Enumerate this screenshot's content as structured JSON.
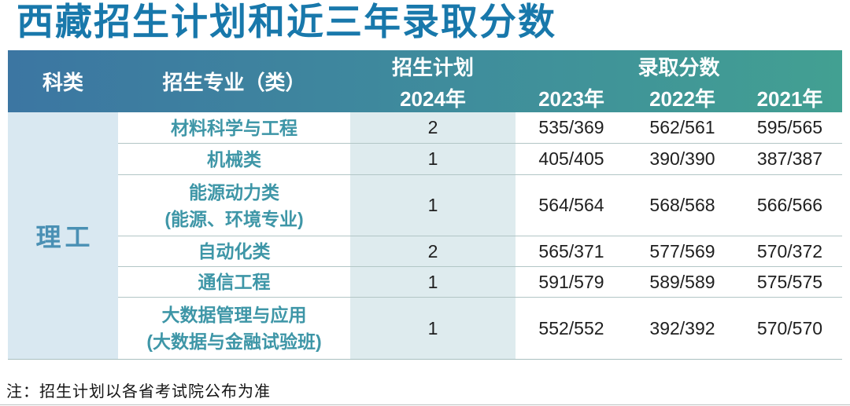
{
  "chart_data": {
    "type": "table",
    "title": "西藏招生计划和近三年录取分数",
    "note": "注：招生计划以各省考试院公布为准",
    "header": {
      "category": "科类",
      "specialty": "招生专业（类）",
      "plan_group": "招生计划",
      "plan_year": "2024年",
      "score_group": "录取分数",
      "year_2023": "2023年",
      "year_2022": "2022年",
      "year_2021": "2021年"
    },
    "category_value": "理工",
    "rows": [
      {
        "specialty": "材料科学与工程",
        "specialty2": "",
        "plan": "2",
        "s2023": "535/369",
        "s2022": "562/561",
        "s2021": "595/565"
      },
      {
        "specialty": "机械类",
        "specialty2": "",
        "plan": "1",
        "s2023": "405/405",
        "s2022": "390/390",
        "s2021": "387/387"
      },
      {
        "specialty": "能源动力类",
        "specialty2": "(能源、环境专业)",
        "plan": "1",
        "s2023": "564/564",
        "s2022": "568/568",
        "s2021": "566/566"
      },
      {
        "specialty": "自动化类",
        "specialty2": "",
        "plan": "2",
        "s2023": "565/371",
        "s2022": "577/569",
        "s2021": "570/372"
      },
      {
        "specialty": "通信工程",
        "specialty2": "",
        "plan": "1",
        "s2023": "591/579",
        "s2022": "589/589",
        "s2021": "575/575"
      },
      {
        "specialty": "大数据管理与应用",
        "specialty2": "(大数据与金融试验班)",
        "plan": "1",
        "s2023": "552/552",
        "s2022": "392/392",
        "s2021": "570/570"
      }
    ]
  },
  "colors": {
    "title_text": "#1878ab",
    "header_gradient_left": "#3c76a2",
    "header_gradient_right": "#42a092",
    "header_text": "#ffffff",
    "category_col_bg": "#d9e8f1",
    "plan_col_bg": "#deebee",
    "specialty_text": "#3e96a7",
    "category_text": "#4a90b4",
    "score_text": "#1f1f1f",
    "divider": "#b2c6c6"
  }
}
